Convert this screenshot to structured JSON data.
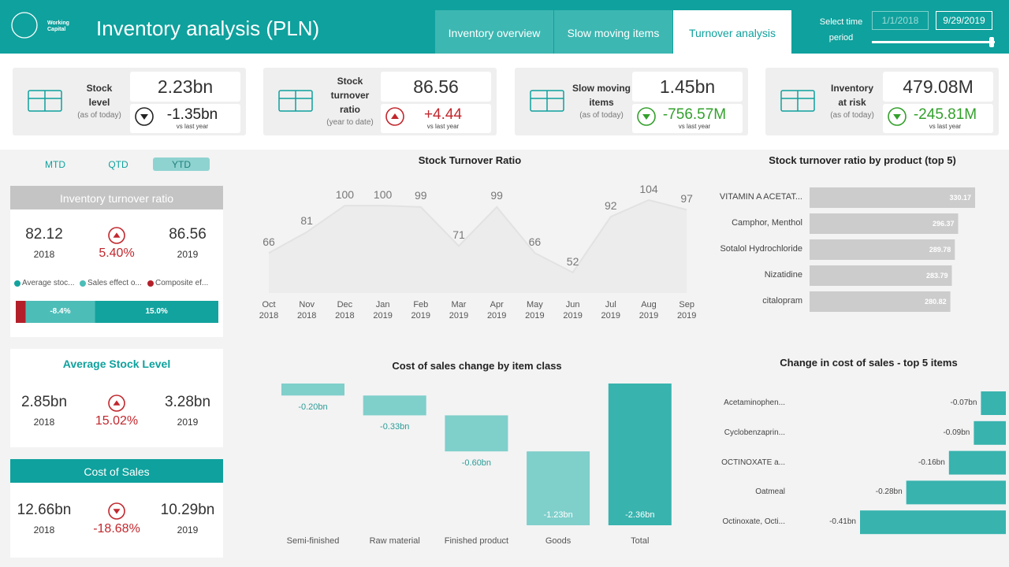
{
  "header": {
    "logo_text": "Working Capital",
    "title": "Inventory analysis (PLN)",
    "tabs": [
      "Inventory overview",
      "Slow moving items",
      "Turnover analysis"
    ],
    "active_tab": 2,
    "time_label": "Select time period",
    "date_from": "1/1/2018",
    "date_to": "9/29/2019"
  },
  "kpis": [
    {
      "title": "Stock level",
      "note": "(as of today)",
      "value": "2.23bn",
      "change": "-1.35bn",
      "change_note": "vs last year",
      "direction": "down",
      "color": "#222222"
    },
    {
      "title": "Stock turnover ratio",
      "note": "(year to date)",
      "value": "86.56",
      "change": "+4.44",
      "change_note": "vs last year",
      "direction": "up",
      "color": "#c1272d"
    },
    {
      "title": "Slow moving items",
      "note": "(as of today)",
      "value": "1.45bn",
      "change": "-756.57M",
      "change_note": "vs last year",
      "direction": "down",
      "color": "#33a02c"
    },
    {
      "title": "Inventory at risk",
      "note": "(as of today)",
      "value": "479.08M",
      "change": "-245.81M",
      "change_note": "vs last year",
      "direction": "down",
      "color": "#33a02c"
    }
  ],
  "period_buttons": {
    "labels": [
      "MTD",
      "QTD",
      "YTD"
    ],
    "active": 2
  },
  "change_color": "#c1272d",
  "cards": [
    {
      "title": "Inventory turnover ratio",
      "previous": "82.12",
      "previous_year": "2018",
      "change": "5.40%",
      "direction": "up",
      "current": "86.56",
      "current_year": "2019",
      "effects": [
        {
          "name": "Average stoc...",
          "color": "#13a39e",
          "value": 15.0,
          "value_label": "15.0%"
        },
        {
          "name": "Sales effect o...",
          "color": "#4dbdb8",
          "value": -8.4,
          "value_label": "-8.4%"
        },
        {
          "name": "Composite ef...",
          "color": "#b3202a",
          "value": -1.2
        }
      ]
    },
    {
      "title": "Average Stock Level",
      "previous": "2.85bn",
      "previous_year": "2018",
      "change": "15.02%",
      "direction": "up",
      "current": "3.28bn",
      "current_year": "2019"
    },
    {
      "title": "Cost of Sales",
      "previous": "12.66bn",
      "previous_year": "2018",
      "change": "-18.68%",
      "direction": "down",
      "current": "10.29bn",
      "current_year": "2019"
    }
  ],
  "chart_data": [
    {
      "type": "area",
      "title": "Stock Turnover Ratio",
      "categories": [
        "Oct 2018",
        "Nov 2018",
        "Dec 2018",
        "Jan 2019",
        "Feb 2019",
        "Mar 2019",
        "Apr 2019",
        "May 2019",
        "Jun 2019",
        "Jul 2019",
        "Aug 2019",
        "Sep 2019"
      ],
      "values": [
        66,
        81,
        100,
        100,
        99,
        71,
        99,
        66,
        52,
        92,
        104,
        97
      ],
      "color": "#e2e2e2"
    },
    {
      "type": "bar",
      "orientation": "horizontal",
      "title": "Stock turnover ratio by product (top 5)",
      "categories": [
        "VITAMIN A ACETAT...",
        "Camphor, Menthol",
        "Sotalol Hydrochloride",
        "Nizatidine",
        "citalopram"
      ],
      "values": [
        330.17,
        296.37,
        289.78,
        283.79,
        280.82
      ],
      "color": "#cccccc"
    },
    {
      "type": "waterfall",
      "title": "Cost of sales change by item class",
      "categories": [
        "Semi-finished",
        "Raw material",
        "Finished product",
        "Goods",
        "Total"
      ],
      "values": [
        -0.2,
        -0.33,
        -0.6,
        -1.23,
        -2.36
      ],
      "value_labels": [
        "-0.20bn",
        "-0.33bn",
        "-0.60bn",
        "-1.23bn",
        "-2.36bn"
      ],
      "color": "#7fcfcb",
      "total_color": "#38b3ae",
      "total_last": true
    },
    {
      "type": "bar",
      "orientation": "horizontal",
      "title": "Change in cost of sales - top 5 items",
      "categories": [
        "Acetaminophen...",
        "Cyclobenzaprin...",
        "OCTINOXATE a...",
        "Oatmeal",
        "Octinoxate, Octi..."
      ],
      "values": [
        -0.07,
        -0.09,
        -0.16,
        -0.28,
        -0.41
      ],
      "value_labels": [
        "-0.07bn",
        "-0.09bn",
        "-0.16bn",
        "-0.28bn",
        "-0.41bn"
      ],
      "color": "#38b3ae"
    }
  ]
}
